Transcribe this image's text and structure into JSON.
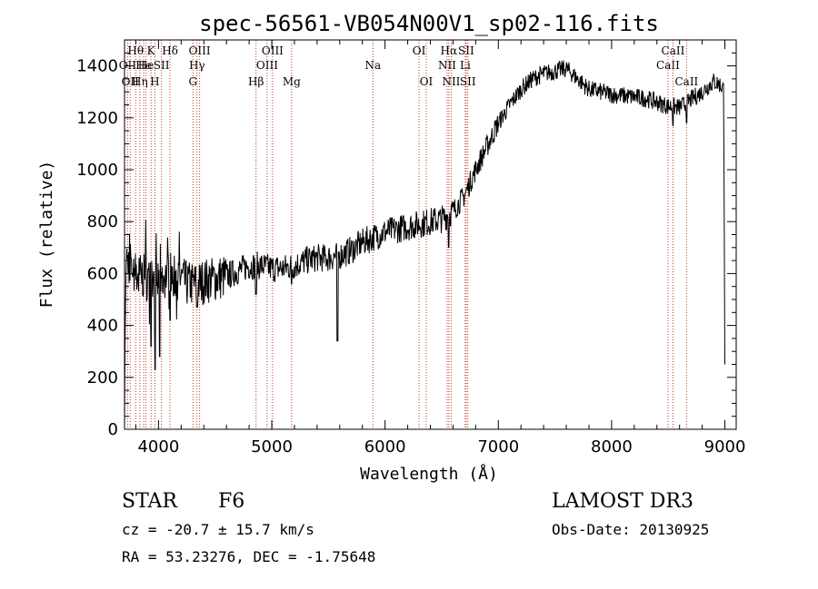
{
  "chart_data": {
    "type": "line",
    "title": "spec-56561-VB054N00V1_sp02-116.fits",
    "xlabel": "Wavelength (Å)",
    "ylabel": "Flux (relative)",
    "xlim": [
      3700,
      9100
    ],
    "ylim": [
      0,
      1500
    ],
    "x_ticks": [
      4000,
      5000,
      6000,
      7000,
      8000,
      9000
    ],
    "y_ticks": [
      0,
      200,
      400,
      600,
      800,
      1000,
      1200,
      1400
    ],
    "x_tick_labels": [
      "4000",
      "5000",
      "6000",
      "7000",
      "8000",
      "9000"
    ],
    "y_tick_labels": [
      "0",
      "200",
      "400",
      "600",
      "800",
      "1000",
      "1200",
      "1400"
    ],
    "spectral_lines": [
      {
        "wave": 3727,
        "label": "OII",
        "row": 2
      },
      {
        "wave": 3750,
        "label": "OII",
        "row": 3
      },
      {
        "wave": 3798,
        "label": "Hθ",
        "row": 1
      },
      {
        "wave": 3835,
        "label": "Hη",
        "row": 3
      },
      {
        "wave": 3869,
        "label": "He",
        "row": 2
      },
      {
        "wave": 3889,
        "label": "He",
        "row": 2
      },
      {
        "wave": 3934,
        "label": "K",
        "row": 1
      },
      {
        "wave": 3968,
        "label": "H",
        "row": 3
      },
      {
        "wave": 4026,
        "label": "SII",
        "row": 2
      },
      {
        "wave": 4102,
        "label": "Hδ",
        "row": 1
      },
      {
        "wave": 4304,
        "label": "G",
        "row": 3
      },
      {
        "wave": 4340,
        "label": "Hγ",
        "row": 2
      },
      {
        "wave": 4363,
        "label": "OIII",
        "row": 1
      },
      {
        "wave": 4861,
        "label": "Hβ",
        "row": 3
      },
      {
        "wave": 4959,
        "label": "OIII",
        "row": 2
      },
      {
        "wave": 5007,
        "label": "OIII",
        "row": 1
      },
      {
        "wave": 5175,
        "label": "Mg",
        "row": 3
      },
      {
        "wave": 5893,
        "label": "Na",
        "row": 2
      },
      {
        "wave": 6300,
        "label": "OI",
        "row": 1
      },
      {
        "wave": 6364,
        "label": "OI",
        "row": 3
      },
      {
        "wave": 6548,
        "label": "NII",
        "row": 2
      },
      {
        "wave": 6563,
        "label": "Hα",
        "row": 1
      },
      {
        "wave": 6584,
        "label": "NII",
        "row": 3
      },
      {
        "wave": 6708,
        "label": "Li",
        "row": 2
      },
      {
        "wave": 6716,
        "label": "SII",
        "row": 1
      },
      {
        "wave": 6731,
        "label": "SII",
        "row": 3
      },
      {
        "wave": 8498,
        "label": "CaII",
        "row": 2
      },
      {
        "wave": 8542,
        "label": "CaII",
        "row": 1
      },
      {
        "wave": 8662,
        "label": "CaII",
        "row": 3
      }
    ],
    "series": [
      {
        "name": "flux",
        "anchors": [
          [
            3700,
            0
          ],
          [
            3708,
            620
          ],
          [
            3720,
            650
          ],
          [
            3750,
            640
          ],
          [
            3800,
            600
          ],
          [
            3850,
            590
          ],
          [
            3900,
            580
          ],
          [
            3950,
            560
          ],
          [
            4000,
            570
          ],
          [
            4050,
            590
          ],
          [
            4100,
            600
          ],
          [
            4150,
            590
          ],
          [
            4200,
            580
          ],
          [
            4250,
            560
          ],
          [
            4300,
            560
          ],
          [
            4350,
            560
          ],
          [
            4400,
            570
          ],
          [
            4500,
            580
          ],
          [
            4600,
            590
          ],
          [
            4700,
            610
          ],
          [
            4800,
            630
          ],
          [
            4900,
            630
          ],
          [
            5000,
            620
          ],
          [
            5100,
            620
          ],
          [
            5200,
            630
          ],
          [
            5300,
            650
          ],
          [
            5400,
            660
          ],
          [
            5500,
            660
          ],
          [
            5600,
            670
          ],
          [
            5700,
            690
          ],
          [
            5800,
            720
          ],
          [
            5900,
            740
          ],
          [
            6000,
            760
          ],
          [
            6100,
            770
          ],
          [
            6200,
            780
          ],
          [
            6300,
            790
          ],
          [
            6400,
            800
          ],
          [
            6500,
            810
          ],
          [
            6600,
            840
          ],
          [
            6700,
            900
          ],
          [
            6800,
            1000
          ],
          [
            6900,
            1090
          ],
          [
            7000,
            1180
          ],
          [
            7100,
            1250
          ],
          [
            7200,
            1310
          ],
          [
            7300,
            1350
          ],
          [
            7400,
            1370
          ],
          [
            7500,
            1380
          ],
          [
            7600,
            1390
          ],
          [
            7700,
            1350
          ],
          [
            7800,
            1310
          ],
          [
            7900,
            1300
          ],
          [
            8000,
            1290
          ],
          [
            8100,
            1285
          ],
          [
            8200,
            1280
          ],
          [
            8300,
            1275
          ],
          [
            8400,
            1260
          ],
          [
            8500,
            1245
          ],
          [
            8600,
            1240
          ],
          [
            8700,
            1270
          ],
          [
            8800,
            1300
          ],
          [
            8850,
            1320
          ],
          [
            8900,
            1340
          ],
          [
            8950,
            1330
          ],
          [
            8990,
            1310
          ],
          [
            9000,
            250
          ]
        ],
        "dips": [
          [
            3970,
            230
          ],
          [
            3935,
            320
          ],
          [
            4010,
            280
          ],
          [
            4102,
            420
          ],
          [
            4340,
            470
          ],
          [
            4860,
            520
          ],
          [
            5175,
            560
          ],
          [
            5580,
            340
          ],
          [
            6563,
            700
          ],
          [
            8542,
            1170
          ],
          [
            8662,
            1180
          ]
        ]
      }
    ]
  },
  "info": {
    "object_class": "STAR",
    "subclass": "F6",
    "survey": "LAMOST DR3",
    "cz": "cz = -20.7 ± 15.7 km/s",
    "obs_date": "Obs-Date: 20130925",
    "coords": "RA =  53.23276, DEC =  -1.75648"
  }
}
